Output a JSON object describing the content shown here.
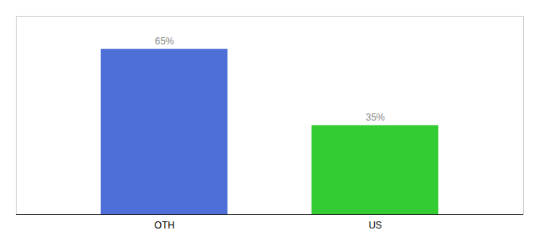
{
  "chart_data": {
    "type": "bar",
    "categories": [
      "OTH",
      "US"
    ],
    "values": [
      65,
      35
    ],
    "value_labels": [
      "65%",
      "35%"
    ],
    "colors": [
      "#4F6FD8",
      "#33CC33"
    ],
    "ylim": [
      0,
      78
    ],
    "data_labels": true,
    "tick_labels": "x",
    "grid": false
  }
}
